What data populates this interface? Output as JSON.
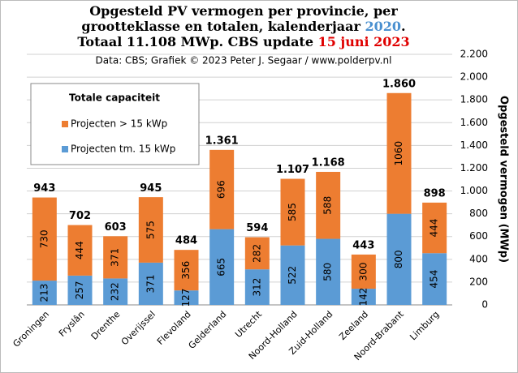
{
  "chart_data": {
    "type": "stacked_bar",
    "title": [
      [
        {
          "text": "Opgesteld PV vermogen per provincie, per",
          "color": "#000000"
        }
      ],
      [
        {
          "text": "grootteklasse en totalen, kalenderjaar ",
          "color": "#000000"
        },
        {
          "text": "2020",
          "color": "#4a90d0"
        },
        {
          "text": ".",
          "color": "#000000"
        }
      ],
      [
        {
          "text": "Totaal 11.108 MWp. CBS update ",
          "color": "#000000"
        },
        {
          "text": "15 juni 2023",
          "color": "#e00000"
        }
      ]
    ],
    "subtitle": "Data: CBS; Grafiek © 2023 Peter J. Segaar / www.polderpv.nl",
    "y_label": "Opgesteld vermogen (MWp)",
    "legend_title": "Totale capaciteit",
    "categories": [
      "Groningen",
      "Fryslân",
      "Drenthe",
      "Overijssel",
      "Flevoland",
      "Gelderland",
      "Utrecht",
      "Noord-Holland",
      "Zuid-Holland",
      "Zeeland",
      "Noord-Brabant",
      "Limburg"
    ],
    "series": [
      {
        "name": "Projecten tm. 15 kWp",
        "color": "#5b9bd5",
        "values": [
          213,
          257,
          232,
          371,
          127,
          665,
          312,
          522,
          580,
          142,
          800,
          454
        ]
      },
      {
        "name": "Projecten > 15 kWp",
        "color": "#ed7d31",
        "values": [
          730,
          444,
          371,
          575,
          356,
          696,
          282,
          585,
          588,
          300,
          1060,
          444
        ]
      }
    ],
    "totals": {
      "values": [
        943,
        702,
        603,
        945,
        484,
        1361,
        594,
        1107,
        1168,
        443,
        1860,
        898
      ],
      "value_labels": [
        "943",
        "702",
        "603",
        "945",
        "484",
        "1.361",
        "594",
        "1.107",
        "1.168",
        "443",
        "1.860",
        "898"
      ]
    },
    "ylim": [
      0,
      2200
    ],
    "yticks": [
      0,
      200,
      400,
      600,
      800,
      {
        "value": 1000,
        "label": "1.000"
      },
      {
        "value": 1200,
        "label": "1.200"
      },
      {
        "value": 1400,
        "label": "1.400"
      },
      {
        "value": 1600,
        "label": "1.600"
      },
      {
        "value": 1800,
        "label": "1.800"
      },
      {
        "value": 2000,
        "label": "2.000"
      },
      {
        "value": 2200,
        "label": "2.200"
      }
    ],
    "grid": true,
    "y_axis_side": "right"
  }
}
